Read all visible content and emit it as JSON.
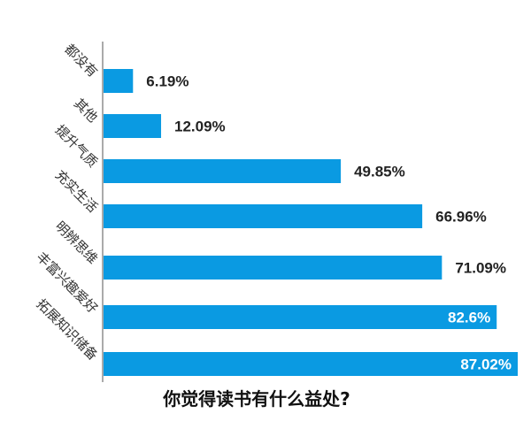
{
  "chart_data": {
    "type": "bar",
    "orientation": "horizontal",
    "title": "你觉得读书有什么益处?",
    "categories": [
      "都没有",
      "其他",
      "提升气质",
      "充实生活",
      "明辨思维",
      "丰富兴趣爱好",
      "拓展知识储备"
    ],
    "values": [
      6.19,
      12.09,
      49.85,
      66.96,
      71.09,
      82.6,
      87.02
    ],
    "value_labels": [
      "6.19%",
      "12.09%",
      "49.85%",
      "66.96%",
      "71.09%",
      "82.6%",
      "87.02%"
    ],
    "unit": "%",
    "xlim": [
      0,
      87.02
    ],
    "grid": false,
    "colors": {
      "bar": "#0a9ae2",
      "label_dark": "#222222",
      "label_light": "#ffffff"
    }
  }
}
